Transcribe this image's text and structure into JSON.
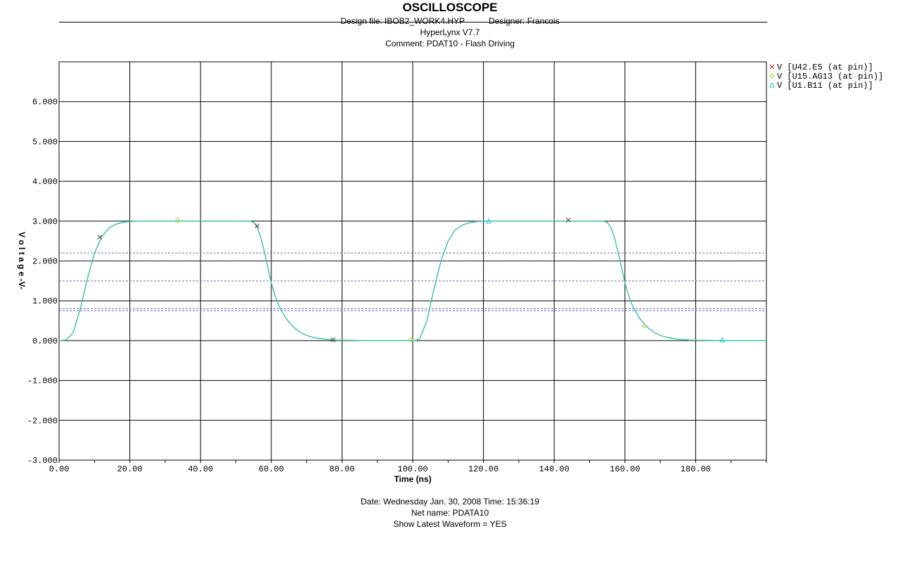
{
  "header": {
    "title": "OSCILLOSCOPE",
    "design_file": "Design file: IBOB2_WORK4.HYP",
    "designer": "Designer: Francois",
    "version": "HyperLynx V7.7",
    "comment": "Comment: PDAT10 - Flash Driving"
  },
  "footer": {
    "date_line": "Date: Wednesday Jan. 30, 2008   Time: 15:36:19",
    "net_name": "Net name: PDATA10",
    "show_latest": "Show Latest Waveform = YES"
  },
  "colors": {
    "grid": "#000000",
    "threshold": "#6c6cc8",
    "series_u42": "#d21e1e",
    "series_u15": "#96d21e",
    "series_u1": "#28c8c8"
  },
  "chart_data": {
    "type": "line",
    "title": "OSCILLOSCOPE",
    "xlabel": "Time  (ns)",
    "ylabel": "V o l  t  a g  e  -V-",
    "xlim": [
      0,
      200
    ],
    "ylim": [
      -3,
      7
    ],
    "x_ticks": [
      0,
      20,
      40,
      60,
      80,
      100,
      120,
      140,
      160,
      180
    ],
    "x_tick_labels": [
      "0.00",
      "20.00",
      "40.00",
      "60.00",
      "80.00",
      "100.00",
      "120.00",
      "140.00",
      "160.00",
      "180.00"
    ],
    "y_ticks": [
      -3,
      -2,
      -1,
      0,
      1,
      2,
      3,
      4,
      5,
      6
    ],
    "y_tick_labels": [
      "-3.000",
      "-2.000",
      "-1.000",
      "0.000",
      "1.000",
      "2.000",
      "3.000",
      "4.000",
      "5.000",
      "6.000"
    ],
    "grid": true,
    "legend": "top-right",
    "threshold_lines": [
      2.2,
      1.5,
      0.8,
      0.75
    ],
    "reference_line": 2.0,
    "series": [
      {
        "name": "V [U42.E5 (at pin)]",
        "marker": "x",
        "x": [
          0,
          2,
          4,
          6,
          8,
          10,
          12,
          14,
          16,
          18,
          20,
          22,
          25,
          30,
          40,
          50,
          54,
          55,
          56,
          57,
          58,
          59,
          60,
          61,
          62,
          64,
          66,
          68,
          70,
          72,
          74,
          76,
          78,
          80,
          90,
          100,
          101,
          102,
          104,
          106,
          108,
          110,
          112,
          114,
          116,
          118,
          120,
          122,
          125,
          130,
          140,
          150,
          154,
          155,
          156,
          157,
          158,
          159,
          160,
          161,
          162,
          164,
          166,
          168,
          170,
          172,
          174,
          176,
          178,
          180,
          190,
          200
        ],
        "y": [
          0.0,
          0.02,
          0.2,
          0.8,
          1.55,
          2.2,
          2.6,
          2.82,
          2.92,
          2.97,
          2.99,
          3.0,
          3.0,
          3.0,
          3.0,
          3.0,
          3.0,
          2.97,
          2.85,
          2.6,
          2.25,
          1.85,
          1.45,
          1.15,
          0.9,
          0.58,
          0.36,
          0.22,
          0.13,
          0.08,
          0.05,
          0.03,
          0.015,
          0.01,
          0.0,
          0.0,
          0.01,
          0.05,
          0.5,
          1.3,
          2.0,
          2.5,
          2.78,
          2.9,
          2.96,
          2.99,
          3.0,
          3.0,
          3.0,
          3.0,
          3.0,
          3.0,
          3.0,
          2.97,
          2.85,
          2.6,
          2.25,
          1.85,
          1.45,
          1.15,
          0.9,
          0.58,
          0.36,
          0.22,
          0.13,
          0.08,
          0.05,
          0.03,
          0.015,
          0.01,
          0.0,
          0.0
        ],
        "markers": [
          [
            11.5,
            2.6
          ],
          [
            56.0,
            2.88
          ],
          [
            77.5,
            0.02
          ],
          [
            144.0,
            3.03
          ]
        ]
      },
      {
        "name": "V [U15.AG13 (at pin)]",
        "marker": "diamond",
        "x": [
          0,
          2,
          4,
          6,
          8,
          10,
          12,
          14,
          16,
          18,
          20,
          22,
          25,
          30,
          40,
          50,
          54,
          55,
          56,
          57,
          58,
          59,
          60,
          61,
          62,
          64,
          66,
          68,
          70,
          72,
          74,
          76,
          78,
          80,
          90,
          100,
          101,
          102,
          104,
          106,
          108,
          110,
          112,
          114,
          116,
          118,
          120,
          122,
          125,
          130,
          140,
          150,
          154,
          155,
          156,
          157,
          158,
          159,
          160,
          161,
          162,
          164,
          166,
          168,
          170,
          172,
          174,
          176,
          178,
          180,
          190,
          200
        ],
        "y": [
          0.0,
          0.02,
          0.2,
          0.8,
          1.55,
          2.2,
          2.6,
          2.82,
          2.92,
          2.97,
          2.99,
          3.0,
          3.0,
          3.0,
          3.0,
          3.0,
          3.0,
          2.97,
          2.85,
          2.6,
          2.25,
          1.85,
          1.45,
          1.15,
          0.9,
          0.58,
          0.36,
          0.22,
          0.13,
          0.08,
          0.05,
          0.03,
          0.015,
          0.01,
          0.0,
          0.0,
          0.01,
          0.05,
          0.5,
          1.3,
          2.0,
          2.5,
          2.78,
          2.9,
          2.96,
          2.99,
          3.0,
          3.0,
          3.0,
          3.0,
          3.0,
          3.0,
          3.0,
          2.97,
          2.85,
          2.6,
          2.25,
          1.85,
          1.45,
          1.15,
          0.9,
          0.58,
          0.36,
          0.22,
          0.13,
          0.08,
          0.05,
          0.03,
          0.015,
          0.01,
          0.0,
          0.0
        ],
        "markers": [
          [
            33.5,
            3.02
          ],
          [
            99.5,
            0.02
          ],
          [
            165.5,
            0.37
          ]
        ]
      },
      {
        "name": "V [U1.B11 (at pin)]",
        "marker": "triangle",
        "x": [
          0,
          2,
          4,
          6,
          8,
          10,
          12,
          14,
          16,
          18,
          20,
          22,
          25,
          30,
          40,
          50,
          54,
          55,
          56,
          57,
          58,
          59,
          60,
          61,
          62,
          64,
          66,
          68,
          70,
          72,
          74,
          76,
          78,
          80,
          90,
          100,
          101,
          102,
          104,
          106,
          108,
          110,
          112,
          114,
          116,
          118,
          120,
          122,
          125,
          130,
          140,
          150,
          154,
          155,
          156,
          157,
          158,
          159,
          160,
          161,
          162,
          164,
          166,
          168,
          170,
          172,
          174,
          176,
          178,
          180,
          190,
          200
        ],
        "y": [
          0.0,
          0.02,
          0.2,
          0.8,
          1.55,
          2.2,
          2.6,
          2.82,
          2.92,
          2.97,
          2.99,
          3.0,
          3.0,
          3.0,
          3.0,
          3.0,
          3.0,
          2.97,
          2.85,
          2.6,
          2.25,
          1.85,
          1.45,
          1.15,
          0.9,
          0.58,
          0.36,
          0.22,
          0.13,
          0.08,
          0.05,
          0.03,
          0.015,
          0.01,
          0.0,
          0.0,
          0.01,
          0.05,
          0.5,
          1.3,
          2.0,
          2.5,
          2.78,
          2.9,
          2.96,
          2.99,
          3.0,
          3.0,
          3.0,
          3.0,
          3.0,
          3.0,
          3.0,
          2.97,
          2.85,
          2.6,
          2.25,
          1.85,
          1.45,
          1.15,
          0.9,
          0.58,
          0.36,
          0.22,
          0.13,
          0.08,
          0.05,
          0.03,
          0.015,
          0.01,
          0.0,
          0.0
        ],
        "markers": [
          [
            121.5,
            3.0
          ],
          [
            187.5,
            0.02
          ]
        ]
      }
    ]
  }
}
